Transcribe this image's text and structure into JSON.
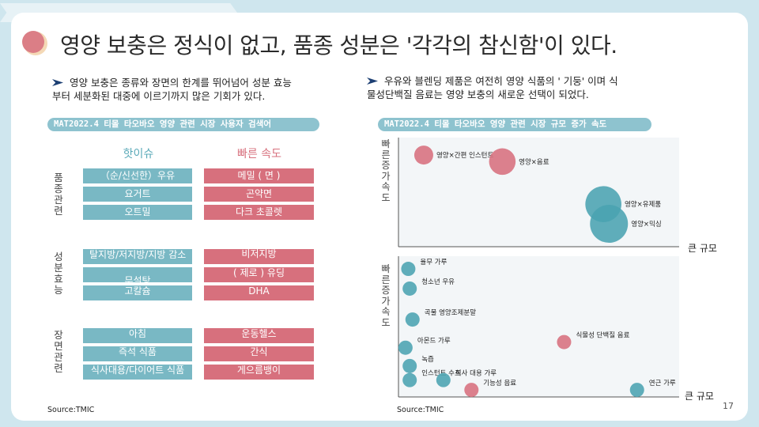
{
  "title": "영양 보충은 정식이 없고, 품종 성분은 '각각의 참신함'이 있다.",
  "bullets": {
    "left": [
      "영양 보충은 종류와 장면의 한계를 뛰어넘어 성분 효능",
      "부터 세분화된 대중에  이르기까지  많은  기회가  있다."
    ],
    "right": [
      "우유와 블렌딩 제품은 여전히  영양  식품의  ' 기둥' 이며  식",
      "물성단백질  음료는  영양  보충의  새로운  선택이  되었다."
    ]
  },
  "left_panel": {
    "pill": "MAT2022.4 티몰 타오바오 영양 관련 시장 사용자 검색어",
    "col_headers": [
      "핫이슈",
      "빠른 속도"
    ],
    "groups": [
      {
        "label": "품종관련",
        "teal": [
          "（순/신선한）우유",
          "요거트",
          "오트밀"
        ],
        "pink": [
          "메밀 ( 면 )",
          "곤약면",
          "다크 초콜렛"
        ]
      },
      {
        "label": "성분효능",
        "teal": [
          "탈지방/저지방/지방 감소",
          "무설탕",
          "고칼슘"
        ],
        "pink": [
          "비저지방",
          "( 제로 ) 유딩",
          "DHA"
        ]
      },
      {
        "label": "장면관련",
        "teal": [
          "아침",
          "즉석 식품",
          "식사대용/다이어트 식품"
        ],
        "pink": [
          "운동헬스",
          "간식",
          "게으름뱅이"
        ]
      }
    ],
    "source": "Source:TMIC"
  },
  "right_panel": {
    "pill": "MAT2022.4 티몰 타오바오 영양 관련 시장 규모 증가 속도",
    "source": "Source:TMIC"
  },
  "page_number": "17",
  "colors": {
    "teal": "#4aa3b1",
    "pink": "#d7707d",
    "pill": "#8ec3cf",
    "title_dot": "#db7e86"
  },
  "chart_data": [
    {
      "type": "scatter",
      "title": "MAT2022.4 티몰 타오바오 영양 관련 시장 규모 증가 속도",
      "xlabel": "큰 규모",
      "ylabel": "빠른증가속도",
      "grid": false,
      "points": [
        {
          "label": "영양×간편 인스턴트",
          "x": 0.09,
          "y": 0.84,
          "size": 1.0,
          "color": "pink"
        },
        {
          "label": "영양×음료",
          "x": 0.37,
          "y": 0.78,
          "size": 1.4,
          "color": "pink"
        },
        {
          "label": "영양×유제품",
          "x": 0.73,
          "y": 0.39,
          "size": 1.9,
          "color": "teal"
        },
        {
          "label": "영양×믹싱",
          "x": 0.75,
          "y": 0.21,
          "size": 2.0,
          "color": "teal"
        }
      ]
    },
    {
      "type": "scatter",
      "xlabel": "큰 규모",
      "ylabel": "빠른증가속도",
      "grid": false,
      "points": [
        {
          "label": "율무 가루",
          "x": 0.035,
          "y": 0.91,
          "color": "teal"
        },
        {
          "label": "청소년 우유",
          "x": 0.04,
          "y": 0.77,
          "color": "teal"
        },
        {
          "label": "곡물 영양조제분말",
          "x": 0.05,
          "y": 0.55,
          "color": "teal"
        },
        {
          "label": "아몬드 가루",
          "x": 0.025,
          "y": 0.35,
          "color": "teal"
        },
        {
          "label": "녹즙",
          "x": 0.04,
          "y": 0.22,
          "color": "teal"
        },
        {
          "label": "인스턴트 수프",
          "x": 0.04,
          "y": 0.12,
          "color": "teal"
        },
        {
          "label": "식사 대용 가루",
          "x": 0.16,
          "y": 0.12,
          "color": "teal"
        },
        {
          "label": "기능성 음료",
          "x": 0.26,
          "y": 0.05,
          "color": "pink"
        },
        {
          "label": "식물성 단백질 음료",
          "x": 0.59,
          "y": 0.39,
          "color": "pink"
        },
        {
          "label": "연근 가루",
          "x": 0.85,
          "y": 0.05,
          "color": "teal"
        }
      ]
    }
  ]
}
